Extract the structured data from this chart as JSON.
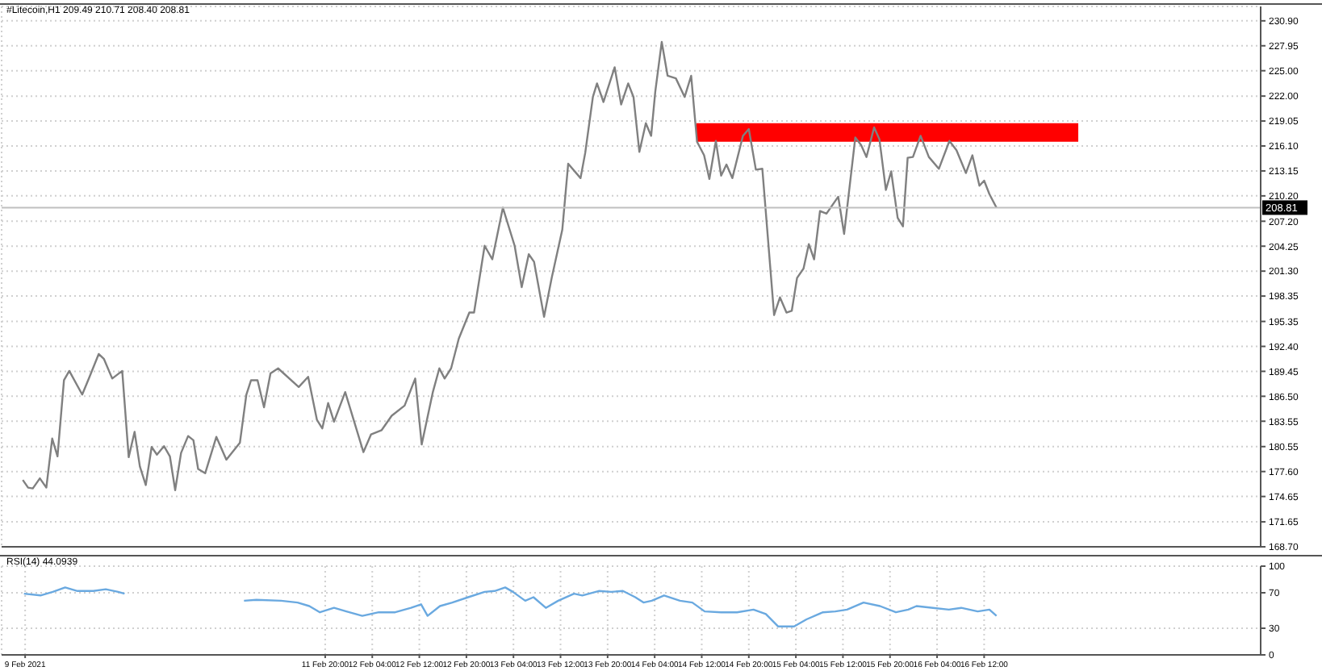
{
  "chart_data": [
    {
      "type": "line",
      "title": "#Litecoin,H1  209.49 210.71 208.40 208.81",
      "xlim": [
        "2021-02-09T13:00",
        "2021-02-18T11:00"
      ],
      "ylim": [
        168.7,
        232.6
      ],
      "yticks": [
        {
          "value": 230.9,
          "label": "230.90"
        },
        {
          "value": 227.95,
          "label": "227.95"
        },
        {
          "value": 225,
          "label": "225.00"
        },
        {
          "value": 222,
          "label": "222.00"
        },
        {
          "value": 219.05,
          "label": "219.05"
        },
        {
          "value": 216.1,
          "label": "216.10"
        },
        {
          "value": 213.15,
          "label": "213.15"
        },
        {
          "value": 210.2,
          "label": "210.20"
        },
        {
          "value": 207.2,
          "label": "207.20"
        },
        {
          "value": 204.25,
          "label": "204.25"
        },
        {
          "value": 201.3,
          "label": "201.30"
        },
        {
          "value": 198.35,
          "label": "198.35"
        },
        {
          "value": 195.35,
          "label": "195.35"
        },
        {
          "value": 192.4,
          "label": "192.40"
        },
        {
          "value": 189.45,
          "label": "189.45"
        },
        {
          "value": 186.5,
          "label": "186.50"
        },
        {
          "value": 183.55,
          "label": "183.55"
        },
        {
          "value": 180.55,
          "label": "180.55"
        },
        {
          "value": 177.6,
          "label": "177.60"
        },
        {
          "value": 174.65,
          "label": "174.65"
        },
        {
          "value": 171.65,
          "label": "171.65"
        },
        {
          "value": 168.7,
          "label": "168.70"
        }
      ],
      "grid": true,
      "tick_labels": "y",
      "marker": "none",
      "line_style": "solid",
      "ref_lines": [
        {
          "axis": "y",
          "value": 208.81,
          "label": "208.81",
          "color": "#c0c0c0"
        }
      ],
      "series": [
        {
          "color": "#808080",
          "x": [
            "2021-02-09T16:36",
            "2021-02-09T17:30",
            "2021-02-09T18:18",
            "2021-02-09T19:30",
            "2021-02-09T20:36",
            "2021-02-09T21:36",
            "2021-02-09T22:30",
            "2021-02-09T23:36",
            "2021-02-10T00:30",
            "2021-02-10T02:42",
            "2021-02-10T04:00",
            "2021-02-10T05:30",
            "2021-02-10T06:24",
            "2021-02-10T07:48",
            "2021-02-10T09:30",
            "2021-02-10T10:36",
            "2021-02-10T11:36",
            "2021-02-10T12:30",
            "2021-02-10T13:30",
            "2021-02-10T14:30",
            "2021-02-10T15:24",
            "2021-02-10T16:36",
            "2021-02-10T17:36",
            "2021-02-10T18:30",
            "2021-02-10T19:30",
            "2021-02-10T20:42",
            "2021-02-10T21:36",
            "2021-02-10T22:24",
            "2021-02-10T23:36",
            "2021-02-11T01:30",
            "2021-02-11T03:12",
            "2021-02-11T05:30",
            "2021-02-11T06:36",
            "2021-02-11T07:24",
            "2021-02-11T08:30",
            "2021-02-11T09:36",
            "2021-02-11T10:42",
            "2021-02-11T12:00",
            "2021-02-11T15:30",
            "2021-02-11T17:06",
            "2021-02-11T18:36",
            "2021-02-11T19:30",
            "2021-02-11T20:30",
            "2021-02-11T21:30",
            "2021-02-11T23:24",
            "2021-02-12T02:30",
            "2021-02-12T03:48",
            "2021-02-12T05:36",
            "2021-02-12T07:18",
            "2021-02-12T09:30",
            "2021-02-12T11:18",
            "2021-02-12T12:24",
            "2021-02-12T14:18",
            "2021-02-12T15:24",
            "2021-02-12T16:18",
            "2021-02-12T17:24",
            "2021-02-12T18:42",
            "2021-02-12T20:30",
            "2021-02-12T21:18",
            "2021-02-12T23:06",
            "2021-02-13T00:24",
            "2021-02-13T02:12",
            "2021-02-13T04:12",
            "2021-02-13T05:24",
            "2021-02-13T06:36",
            "2021-02-13T07:30",
            "2021-02-13T09:12",
            "2021-02-13T10:30",
            "2021-02-13T12:18",
            "2021-02-13T13:18",
            "2021-02-13T15:24",
            "2021-02-13T16:12",
            "2021-02-13T17:30",
            "2021-02-13T18:12",
            "2021-02-13T19:18",
            "2021-02-13T21:12",
            "2021-02-13T22:18",
            "2021-02-13T23:30",
            "2021-02-14T00:24",
            "2021-02-14T01:24",
            "2021-02-14T02:30",
            "2021-02-14T03:24",
            "2021-02-14T04:06",
            "2021-02-14T05:12",
            "2021-02-14T06:12",
            "2021-02-14T07:36",
            "2021-02-14T09:06",
            "2021-02-14T10:12",
            "2021-02-14T11:12",
            "2021-02-14T12:24",
            "2021-02-14T13:18",
            "2021-02-14T14:24",
            "2021-02-14T15:18",
            "2021-02-14T16:12",
            "2021-02-14T17:12",
            "2021-02-14T19:00",
            "2021-02-14T20:00",
            "2021-02-14T21:12",
            "2021-02-14T22:18",
            "2021-02-15T00:18",
            "2021-02-15T01:18",
            "2021-02-15T02:24",
            "2021-02-15T03:18",
            "2021-02-15T04:12",
            "2021-02-15T05:18",
            "2021-02-15T06:12",
            "2021-02-15T07:06",
            "2021-02-15T08:06",
            "2021-02-15T09:12",
            "2021-02-15T11:12",
            "2021-02-15T12:12",
            "2021-02-15T14:06",
            "2021-02-15T15:06",
            "2021-02-15T16:00",
            "2021-02-15T17:18",
            "2021-02-15T18:12",
            "2021-02-15T19:18",
            "2021-02-15T20:12",
            "2021-02-15T21:18",
            "2021-02-15T22:12",
            "2021-02-15T23:00",
            "2021-02-15T23:54",
            "2021-02-16T01:12",
            "2021-02-16T02:36",
            "2021-02-16T04:18",
            "2021-02-16T06:06",
            "2021-02-16T07:18",
            "2021-02-16T08:54",
            "2021-02-16T10:00",
            "2021-02-16T11:12",
            "2021-02-16T12:00",
            "2021-02-16T12:54",
            "2021-02-16T14:06"
          ],
          "values": [
            176.6,
            175.7,
            175.6,
            176.8,
            175.7,
            181.5,
            179.4,
            188.4,
            189.5,
            186.7,
            188.9,
            191.5,
            190.9,
            188.6,
            189.5,
            179.3,
            182.3,
            178.2,
            176.0,
            180.5,
            179.6,
            180.6,
            179.4,
            175.4,
            179.8,
            181.8,
            181.3,
            177.9,
            177.4,
            181.7,
            179.0,
            181.0,
            186.7,
            188.4,
            188.4,
            185.2,
            189.2,
            189.8,
            187.6,
            188.8,
            183.7,
            182.7,
            185.7,
            183.5,
            187.0,
            179.9,
            182.0,
            182.5,
            184.2,
            185.4,
            188.6,
            180.8,
            187.0,
            189.8,
            188.6,
            189.8,
            193.3,
            196.4,
            196.4,
            204.3,
            202.7,
            208.8,
            204.3,
            199.4,
            203.3,
            202.4,
            195.9,
            200.5,
            206.2,
            214.0,
            212.3,
            215.3,
            221.9,
            223.5,
            221.3,
            225.4,
            221.0,
            223.5,
            221.9,
            215.4,
            218.8,
            217.3,
            222.5,
            228.4,
            224.4,
            224.1,
            221.9,
            224.4,
            216.6,
            215.0,
            212.2,
            216.7,
            212.6,
            213.9,
            212.3,
            217.3,
            218.1,
            213.3,
            213.4,
            196.1,
            198.2,
            196.4,
            196.6,
            200.5,
            201.6,
            204.5,
            202.7,
            208.4,
            208.1,
            210.1,
            205.7,
            217.1,
            216.2,
            214.8,
            218.3,
            216.9,
            210.9,
            213.1,
            207.6,
            206.6,
            214.7,
            214.8,
            217.3,
            214.8,
            213.4,
            216.7,
            215.6,
            212.9,
            215.0,
            211.4,
            212.0,
            210.4,
            208.8
          ]
        },
        {
          "color": "#ff0000",
          "x": [
            "2021-02-14T11:06",
            "2021-02-17T04:00"
          ],
          "values": [
            null,
            null
          ],
          "lower": [
            216.6,
            216.6
          ],
          "upper": [
            218.8,
            218.8
          ]
        }
      ]
    },
    {
      "type": "line",
      "title": "RSI(14) 44.0939",
      "xlim": [
        "2021-02-09T13:00",
        "2021-02-18T11:00"
      ],
      "ylim": [
        0,
        100
      ],
      "yticks": [
        100,
        70,
        30,
        0
      ],
      "grid": true,
      "marker": "none",
      "line_style": "solid",
      "xticks": [
        {
          "value": "2021-02-09T17:00",
          "label": "9 Feb 2021"
        },
        {
          "value": "2021-02-11T20:00",
          "label": "11 Feb 20:00"
        },
        {
          "value": "2021-02-12T04:00",
          "label": "12 Feb 04:00"
        },
        {
          "value": "2021-02-12T12:00",
          "label": "12 Feb 12:00"
        },
        {
          "value": "2021-02-12T20:00",
          "label": "12 Feb 20:00"
        },
        {
          "value": "2021-02-13T04:00",
          "label": "13 Feb 04:00"
        },
        {
          "value": "2021-02-13T12:00",
          "label": "13 Feb 12:00"
        },
        {
          "value": "2021-02-13T20:00",
          "label": "13 Feb 20:00"
        },
        {
          "value": "2021-02-14T04:00",
          "label": "14 Feb 04:00"
        },
        {
          "value": "2021-02-14T12:00",
          "label": "14 Feb 12:00"
        },
        {
          "value": "2021-02-14T20:00",
          "label": "14 Feb 20:00"
        },
        {
          "value": "2021-02-15T04:00",
          "label": "15 Feb 04:00"
        },
        {
          "value": "2021-02-15T12:00",
          "label": "15 Feb 12:00"
        },
        {
          "value": "2021-02-15T20:00",
          "label": "15 Feb 20:00"
        },
        {
          "value": "2021-02-16T04:00",
          "label": "16 Feb 04:00"
        },
        {
          "value": "2021-02-16T12:00",
          "label": "16 Feb 12:00"
        }
      ],
      "series": [
        {
          "color": "#6aa9e0",
          "x": [
            "2021-02-09T16:48",
            "2021-02-09T19:36",
            "2021-02-09T21:42",
            "2021-02-09T23:48",
            "2021-02-10T01:54",
            "2021-02-10T04:36",
            "2021-02-10T06:42",
            "2021-02-10T08:48",
            "2021-02-10T09:54",
            "2021-02-10T11:00",
            "2021-02-11T06:12",
            "2021-02-11T08:18",
            "2021-02-11T12:30",
            "2021-02-11T15:18",
            "2021-02-11T17:18",
            "2021-02-11T19:06",
            "2021-02-11T21:30",
            "2021-02-11T23:36",
            "2021-02-12T02:18",
            "2021-02-12T05:06",
            "2021-02-12T07:54",
            "2021-02-12T10:36",
            "2021-02-12T12:18",
            "2021-02-12T13:24",
            "2021-02-12T15:30",
            "2021-02-12T17:36",
            "2021-02-12T20:18",
            "2021-02-12T23:06",
            "2021-02-13T00:48",
            "2021-02-13T02:36",
            "2021-02-13T03:54",
            "2021-02-13T06:00",
            "2021-02-13T07:24",
            "2021-02-13T09:30",
            "2021-02-13T11:36",
            "2021-02-13T14:18",
            "2021-02-13T15:42",
            "2021-02-13T18:30",
            "2021-02-13T20:36",
            "2021-02-13T22:36",
            "2021-02-14T00:42",
            "2021-02-14T02:06",
            "2021-02-14T03:30",
            "2021-02-14T05:36",
            "2021-02-14T08:18",
            "2021-02-14T10:24",
            "2021-02-14T12:30",
            "2021-02-14T15:18",
            "2021-02-14T18:00",
            "2021-02-14T20:48",
            "2021-02-14T22:54",
            "2021-02-15T01:00",
            "2021-02-15T03:42",
            "2021-02-15T05:48",
            "2021-02-15T08:36",
            "2021-02-15T10:42",
            "2021-02-15T12:42",
            "2021-02-15T15:30",
            "2021-02-15T18:18",
            "2021-02-15T21:00",
            "2021-02-15T23:06",
            "2021-02-16T00:30",
            "2021-02-16T03:18",
            "2021-02-16T06:00",
            "2021-02-16T08:06",
            "2021-02-16T10:54",
            "2021-02-16T12:54",
            "2021-02-16T14:06"
          ],
          "values": [
            69,
            67,
            71,
            76,
            72,
            72,
            74,
            71,
            69,
            null,
            61,
            62,
            61,
            59,
            55,
            48,
            53,
            49,
            44,
            48,
            48,
            53,
            57,
            44,
            55,
            59,
            65,
            71,
            72,
            76,
            71,
            61,
            65,
            53,
            61,
            69,
            67,
            72,
            71,
            72,
            65,
            59,
            61,
            67,
            61,
            59,
            49,
            48,
            48,
            51,
            46,
            32,
            32,
            40,
            48,
            49,
            51,
            59,
            55,
            48,
            51,
            55,
            53,
            51,
            53,
            49,
            51,
            44
          ]
        }
      ]
    }
  ]
}
